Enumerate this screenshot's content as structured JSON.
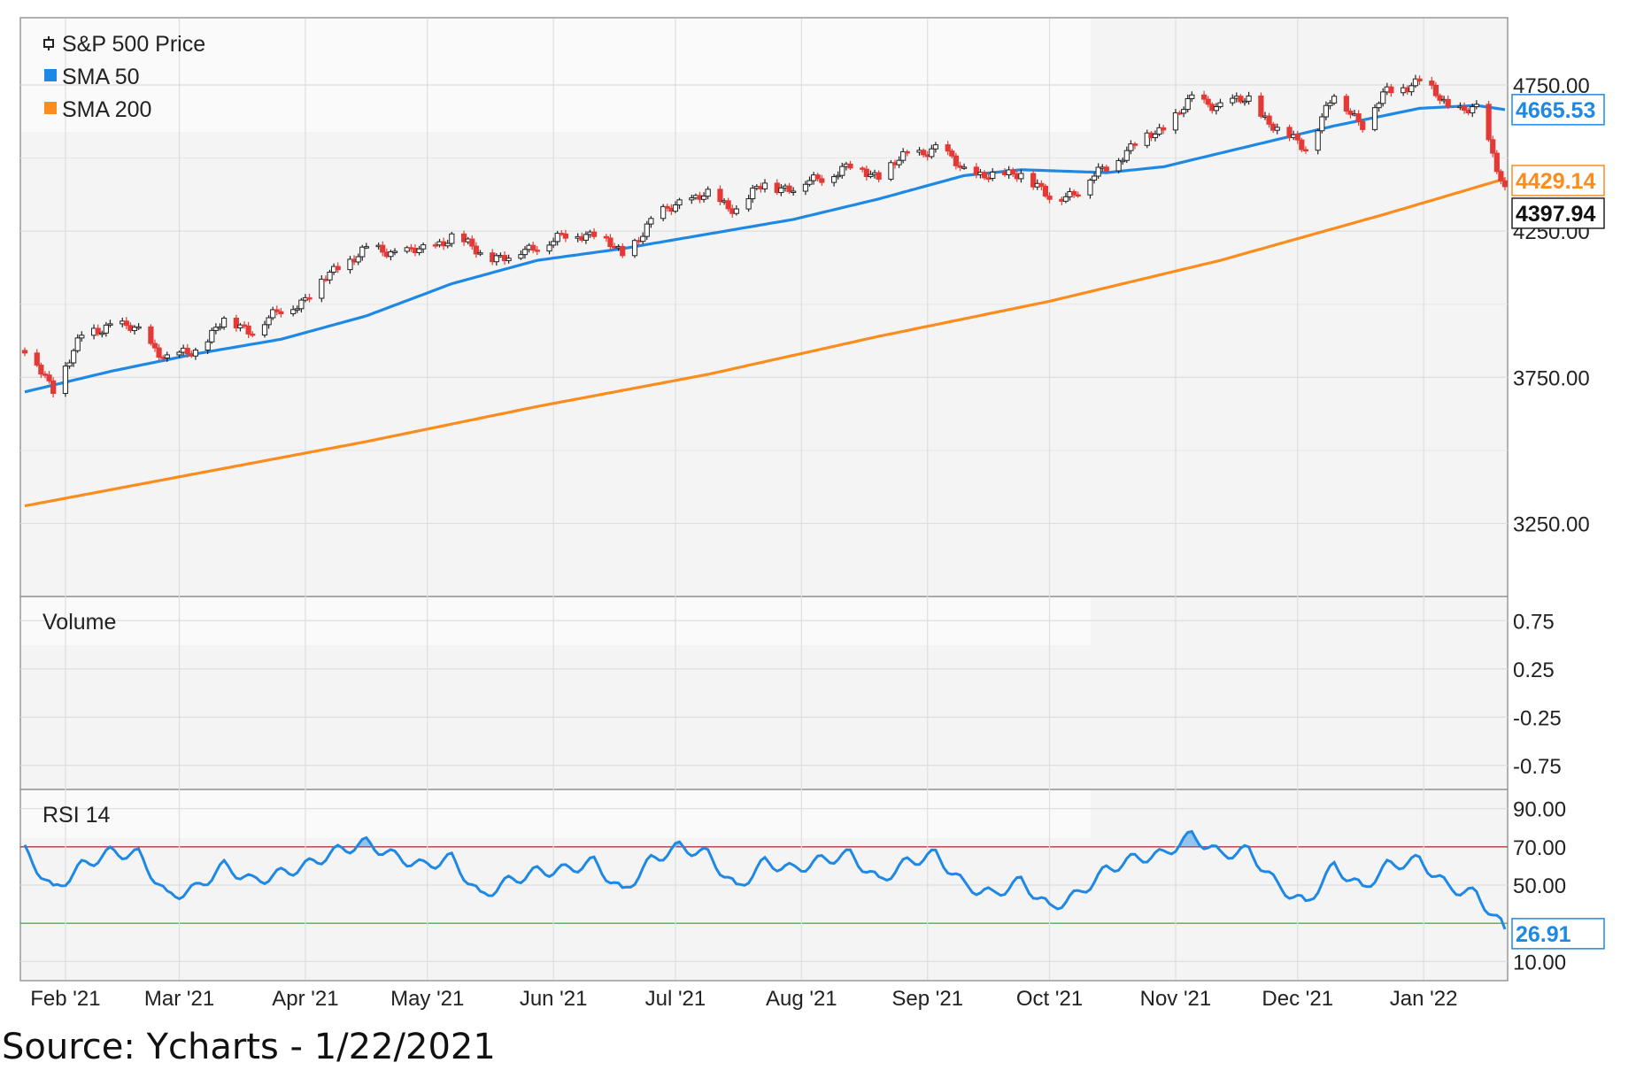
{
  "chart_data": [
    {
      "type": "line",
      "panel": "price",
      "legend": [
        {
          "name": "S&P 500 Price",
          "marker": "candlestick"
        },
        {
          "name": "SMA 50",
          "color": "#1e88e5"
        },
        {
          "name": "SMA 200",
          "color": "#fb8c1e"
        }
      ],
      "y_ticks": [
        "4750.00",
        "4250.00",
        "3750.00",
        "3250.00"
      ],
      "ylim": [
        3000,
        4980
      ],
      "x_ticks": [
        {
          "label": "Feb '21",
          "date": "2021-02-01"
        },
        {
          "label": "Mar '21",
          "date": "2021-03-01"
        },
        {
          "label": "Apr '21",
          "date": "2021-04-01"
        },
        {
          "label": "May '21",
          "date": "2021-05-01"
        },
        {
          "label": "Jun '21",
          "date": "2021-06-01"
        },
        {
          "label": "Jul '21",
          "date": "2021-07-01"
        },
        {
          "label": "Aug '21",
          "date": "2021-08-01"
        },
        {
          "label": "Sep '21",
          "date": "2021-09-01"
        },
        {
          "label": "Oct '21",
          "date": "2021-10-01"
        },
        {
          "label": "Nov '21",
          "date": "2021-11-01"
        },
        {
          "label": "Dec '21",
          "date": "2021-12-01"
        },
        {
          "label": "Jan '22",
          "date": "2022-01-01"
        }
      ],
      "xlim": [
        "2021-01-22",
        "2022-01-21"
      ],
      "price_close": [
        [
          "2021-01-22",
          3842
        ],
        [
          "2021-01-29",
          3714
        ],
        [
          "2021-02-05",
          3886
        ],
        [
          "2021-02-12",
          3934
        ],
        [
          "2021-02-19",
          3906
        ],
        [
          "2021-02-26",
          3811
        ],
        [
          "2021-03-05",
          3842
        ],
        [
          "2021-03-12",
          3943
        ],
        [
          "2021-03-19",
          3913
        ],
        [
          "2021-03-26",
          3975
        ],
        [
          "2021-04-01",
          4020
        ],
        [
          "2021-04-09",
          4129
        ],
        [
          "2021-04-16",
          4185
        ],
        [
          "2021-04-23",
          4180
        ],
        [
          "2021-04-30",
          4181
        ],
        [
          "2021-05-07",
          4233
        ],
        [
          "2021-05-14",
          4174
        ],
        [
          "2021-05-21",
          4156
        ],
        [
          "2021-05-28",
          4204
        ],
        [
          "2021-06-04",
          4230
        ],
        [
          "2021-06-11",
          4247
        ],
        [
          "2021-06-18",
          4166
        ],
        [
          "2021-06-25",
          4281
        ],
        [
          "2021-07-02",
          4352
        ],
        [
          "2021-07-09",
          4370
        ],
        [
          "2021-07-16",
          4327
        ],
        [
          "2021-07-23",
          4412
        ],
        [
          "2021-07-30",
          4395
        ],
        [
          "2021-08-06",
          4437
        ],
        [
          "2021-08-13",
          4468
        ],
        [
          "2021-08-20",
          4442
        ],
        [
          "2021-08-27",
          4509
        ],
        [
          "2021-09-03",
          4535
        ],
        [
          "2021-09-10",
          4459
        ],
        [
          "2021-09-17",
          4433
        ],
        [
          "2021-09-24",
          4455
        ],
        [
          "2021-10-01",
          4357
        ],
        [
          "2021-10-08",
          4391
        ],
        [
          "2021-10-15",
          4471
        ],
        [
          "2021-10-22",
          4545
        ],
        [
          "2021-10-29",
          4605
        ],
        [
          "2021-11-05",
          4697
        ],
        [
          "2021-11-12",
          4682
        ],
        [
          "2021-11-19",
          4698
        ],
        [
          "2021-11-26",
          4595
        ],
        [
          "2021-12-03",
          4538
        ],
        [
          "2021-12-10",
          4712
        ],
        [
          "2021-12-17",
          4620
        ],
        [
          "2021-12-23",
          4725
        ],
        [
          "2021-12-31",
          4766
        ],
        [
          "2022-01-07",
          4677
        ],
        [
          "2022-01-14",
          4662
        ],
        [
          "2022-01-21",
          4398
        ]
      ],
      "sma_50": [
        [
          "2021-01-22",
          3700
        ],
        [
          "2021-02-12",
          3770
        ],
        [
          "2021-03-05",
          3830
        ],
        [
          "2021-03-26",
          3880
        ],
        [
          "2021-04-16",
          3960
        ],
        [
          "2021-05-07",
          4070
        ],
        [
          "2021-05-28",
          4150
        ],
        [
          "2021-06-18",
          4190
        ],
        [
          "2021-07-09",
          4240
        ],
        [
          "2021-07-30",
          4290
        ],
        [
          "2021-08-20",
          4360
        ],
        [
          "2021-09-10",
          4440
        ],
        [
          "2021-09-24",
          4460
        ],
        [
          "2021-10-15",
          4450
        ],
        [
          "2021-10-29",
          4470
        ],
        [
          "2021-11-19",
          4540
        ],
        [
          "2021-12-10",
          4610
        ],
        [
          "2021-12-31",
          4670
        ],
        [
          "2022-01-14",
          4680
        ],
        [
          "2022-01-21",
          4665.53
        ]
      ],
      "sma_200": [
        [
          "2021-01-22",
          3310
        ],
        [
          "2021-03-05",
          3420
        ],
        [
          "2021-04-16",
          3530
        ],
        [
          "2021-05-28",
          3650
        ],
        [
          "2021-07-09",
          3760
        ],
        [
          "2021-08-20",
          3890
        ],
        [
          "2021-10-01",
          4010
        ],
        [
          "2021-11-12",
          4150
        ],
        [
          "2021-12-23",
          4310
        ],
        [
          "2022-01-21",
          4429.14
        ]
      ],
      "last_values": {
        "price": "4397.94",
        "sma_50": "4665.53",
        "sma_200": "4429.14"
      }
    },
    {
      "type": "line",
      "panel": "volume",
      "title": "Volume",
      "y_ticks": [
        "0.75",
        "0.25",
        "-0.25",
        "-0.75"
      ],
      "ylim": [
        -1,
        1
      ]
    },
    {
      "type": "line",
      "panel": "rsi",
      "title": "RSI 14",
      "y_ticks": [
        "90.00",
        "70.00",
        "50.00",
        "10.00"
      ],
      "ylim": [
        0,
        100
      ],
      "reference_lines": [
        {
          "value": 70,
          "color": "#b03a3a"
        },
        {
          "value": 30,
          "color": "#4caf50"
        }
      ],
      "rsi": [
        [
          "2021-01-22",
          68
        ],
        [
          "2021-01-29",
          47
        ],
        [
          "2021-02-05",
          60
        ],
        [
          "2021-02-12",
          67
        ],
        [
          "2021-02-19",
          66
        ],
        [
          "2021-02-26",
          44
        ],
        [
          "2021-03-05",
          48
        ],
        [
          "2021-03-12",
          60
        ],
        [
          "2021-03-19",
          52
        ],
        [
          "2021-03-26",
          56
        ],
        [
          "2021-04-01",
          60
        ],
        [
          "2021-04-09",
          68
        ],
        [
          "2021-04-16",
          72
        ],
        [
          "2021-04-23",
          65
        ],
        [
          "2021-04-30",
          60
        ],
        [
          "2021-05-07",
          64
        ],
        [
          "2021-05-14",
          44
        ],
        [
          "2021-05-21",
          52
        ],
        [
          "2021-05-28",
          57
        ],
        [
          "2021-06-04",
          58
        ],
        [
          "2021-06-11",
          62
        ],
        [
          "2021-06-18",
          46
        ],
        [
          "2021-06-25",
          63
        ],
        [
          "2021-07-02",
          70
        ],
        [
          "2021-07-09",
          66
        ],
        [
          "2021-07-16",
          48
        ],
        [
          "2021-07-23",
          62
        ],
        [
          "2021-07-30",
          58
        ],
        [
          "2021-08-06",
          63
        ],
        [
          "2021-08-13",
          66
        ],
        [
          "2021-08-20",
          52
        ],
        [
          "2021-08-27",
          62
        ],
        [
          "2021-09-03",
          66
        ],
        [
          "2021-09-10",
          50
        ],
        [
          "2021-09-17",
          45
        ],
        [
          "2021-09-24",
          52
        ],
        [
          "2021-10-01",
          38
        ],
        [
          "2021-10-08",
          45
        ],
        [
          "2021-10-15",
          58
        ],
        [
          "2021-10-22",
          64
        ],
        [
          "2021-10-29",
          66
        ],
        [
          "2021-11-05",
          76
        ],
        [
          "2021-11-12",
          66
        ],
        [
          "2021-11-19",
          68
        ],
        [
          "2021-11-26",
          50
        ],
        [
          "2021-12-03",
          40
        ],
        [
          "2021-12-10",
          60
        ],
        [
          "2021-12-17",
          48
        ],
        [
          "2021-12-23",
          60
        ],
        [
          "2021-12-31",
          63
        ],
        [
          "2022-01-07",
          49
        ],
        [
          "2022-01-14",
          45
        ],
        [
          "2022-01-21",
          26.91
        ]
      ],
      "last_value": "26.91"
    }
  ],
  "footer": {
    "source": "Source: Ycharts - 1/22/2021"
  }
}
